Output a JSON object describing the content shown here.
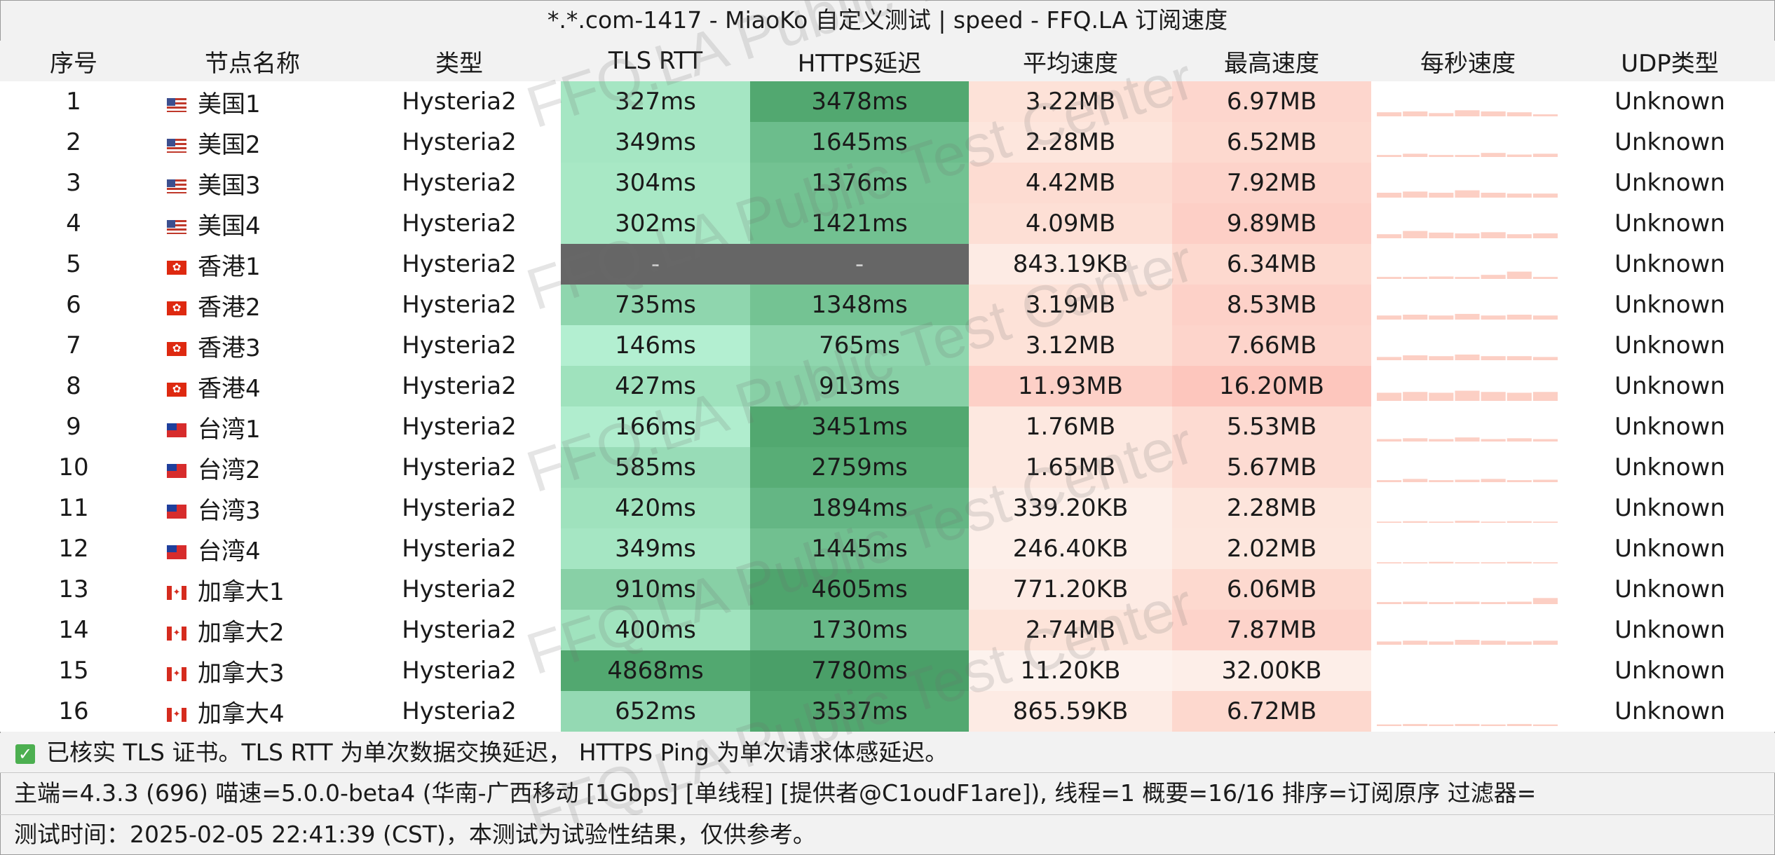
{
  "title": "*.*.com-1417 - MiaoKo 自定义测试 | speed - FFQ.LA 订阅速度",
  "columns": [
    "序号",
    "节点名称",
    "类型",
    "TLS RTT",
    "HTTPS延迟",
    "平均速度",
    "最高速度",
    "每秒速度",
    "UDP类型"
  ],
  "rows": [
    {
      "idx": "1",
      "flag": "us",
      "name": "美国1",
      "type": "Hysteria2",
      "tls": "327ms",
      "https": "3478ms",
      "avg": "3.22MB",
      "max": "6.97MB",
      "udp": "Unknown",
      "tls_color": "#a5e6c3",
      "https_color": "#52a870",
      "avg_color": "#fde2d8",
      "max_color": "#fdd6cd",
      "spark": [
        0.1,
        0.12,
        0.08,
        0.15,
        0.12,
        0.1,
        0.05
      ]
    },
    {
      "idx": "2",
      "flag": "us",
      "name": "美国2",
      "type": "Hysteria2",
      "tls": "349ms",
      "https": "1645ms",
      "avg": "2.28MB",
      "max": "6.52MB",
      "udp": "Unknown",
      "tls_color": "#a5e6c3",
      "https_color": "#6cbd8c",
      "avg_color": "#fde6dd",
      "max_color": "#fdd9cf",
      "spark": [
        0.05,
        0.08,
        0.05,
        0.05,
        0.1,
        0.06,
        0.08
      ]
    },
    {
      "idx": "3",
      "flag": "us",
      "name": "美国3",
      "type": "Hysteria2",
      "tls": "304ms",
      "https": "1376ms",
      "avg": "4.42MB",
      "max": "7.92MB",
      "udp": "Unknown",
      "tls_color": "#a8e8c5",
      "https_color": "#73c292",
      "avg_color": "#fddcd2",
      "max_color": "#fdd3ca",
      "spark": [
        0.12,
        0.15,
        0.12,
        0.18,
        0.12,
        0.1,
        0.1
      ]
    },
    {
      "idx": "4",
      "flag": "us",
      "name": "美国4",
      "type": "Hysteria2",
      "tls": "302ms",
      "https": "1421ms",
      "avg": "4.09MB",
      "max": "9.89MB",
      "udp": "Unknown",
      "tls_color": "#a8e8c5",
      "https_color": "#72c191",
      "avg_color": "#fddfd5",
      "max_color": "#fdcfc6",
      "spark": [
        0.1,
        0.18,
        0.14,
        0.12,
        0.15,
        0.1,
        0.12
      ]
    },
    {
      "idx": "5",
      "flag": "hk",
      "name": "香港1",
      "type": "Hysteria2",
      "tls": "-",
      "https": "-",
      "avg": "843.19KB",
      "max": "6.34MB",
      "udp": "Unknown",
      "tls_color": "#666666",
      "https_color": "#666666",
      "avg_color": "#fdebe4",
      "max_color": "#fdd9cf",
      "spark": [
        0.05,
        0.05,
        0.06,
        0.05,
        0.1,
        0.18,
        0.05
      ]
    },
    {
      "idx": "6",
      "flag": "hk",
      "name": "香港2",
      "type": "Hysteria2",
      "tls": "735ms",
      "https": "1348ms",
      "avg": "3.19MB",
      "max": "8.53MB",
      "udp": "Unknown",
      "tls_color": "#8fd6ae",
      "https_color": "#74c393",
      "avg_color": "#fde2d8",
      "max_color": "#fdd1c8",
      "spark": [
        0.1,
        0.12,
        0.1,
        0.14,
        0.1,
        0.12,
        0.1
      ]
    },
    {
      "idx": "7",
      "flag": "hk",
      "name": "香港3",
      "type": "Hysteria2",
      "tls": "146ms",
      "https": "765ms",
      "avg": "3.12MB",
      "max": "7.66MB",
      "udp": "Unknown",
      "tls_color": "#b3efd1",
      "https_color": "#8fd6ae",
      "avg_color": "#fde2d8",
      "max_color": "#fdd4cb",
      "spark": [
        0.08,
        0.12,
        0.1,
        0.14,
        0.1,
        0.1,
        0.08
      ]
    },
    {
      "idx": "8",
      "flag": "hk",
      "name": "香港4",
      "type": "Hysteria2",
      "tls": "427ms",
      "https": "913ms",
      "avg": "11.93MB",
      "max": "16.20MB",
      "udp": "Unknown",
      "tls_color": "#9fe2bd",
      "https_color": "#88d0a6",
      "avg_color": "#fdd0c7",
      "max_color": "#fdc6bd",
      "spark": [
        0.2,
        0.22,
        0.2,
        0.25,
        0.22,
        0.2,
        0.22
      ]
    },
    {
      "idx": "9",
      "flag": "tw",
      "name": "台湾1",
      "type": "Hysteria2",
      "tls": "166ms",
      "https": "3451ms",
      "avg": "1.76MB",
      "max": "5.53MB",
      "udp": "Unknown",
      "tls_color": "#b0edce",
      "https_color": "#52a870",
      "avg_color": "#fde8e0",
      "max_color": "#fddbd2",
      "spark": [
        0.06,
        0.08,
        0.06,
        0.1,
        0.06,
        0.08,
        0.06
      ]
    },
    {
      "idx": "10",
      "flag": "tw",
      "name": "台湾2",
      "type": "Hysteria2",
      "tls": "585ms",
      "https": "2759ms",
      "avg": "1.65MB",
      "max": "5.67MB",
      "udp": "Unknown",
      "tls_color": "#98dcb7",
      "https_color": "#58ad76",
      "avg_color": "#fde8e0",
      "max_color": "#fddbd2",
      "spark": [
        0.05,
        0.08,
        0.05,
        0.06,
        0.08,
        0.05,
        0.06
      ]
    },
    {
      "idx": "11",
      "flag": "tw",
      "name": "台湾3",
      "type": "Hysteria2",
      "tls": "420ms",
      "https": "1894ms",
      "avg": "339.20KB",
      "max": "2.28MB",
      "udp": "Unknown",
      "tls_color": "#9fe2bd",
      "https_color": "#64b684",
      "avg_color": "#fdefe9",
      "max_color": "#fde5dc",
      "spark": [
        0.03,
        0.04,
        0.03,
        0.05,
        0.03,
        0.04,
        0.03
      ]
    },
    {
      "idx": "12",
      "flag": "tw",
      "name": "台湾4",
      "type": "Hysteria2",
      "tls": "349ms",
      "https": "1445ms",
      "avg": "246.40KB",
      "max": "2.02MB",
      "udp": "Unknown",
      "tls_color": "#a5e6c3",
      "https_color": "#71c090",
      "avg_color": "#fdefe9",
      "max_color": "#fde6dd",
      "spark": [
        0.03,
        0.03,
        0.04,
        0.03,
        0.03,
        0.04,
        0.03
      ]
    },
    {
      "idx": "13",
      "flag": "ca",
      "name": "加拿大1",
      "type": "Hysteria2",
      "tls": "910ms",
      "https": "4605ms",
      "avg": "771.20KB",
      "max": "6.06MB",
      "udp": "Unknown",
      "tls_color": "#88d0a6",
      "https_color": "#4fa46d",
      "avg_color": "#fdebe4",
      "max_color": "#fdd9cf",
      "spark": [
        0.05,
        0.06,
        0.05,
        0.06,
        0.05,
        0.06,
        0.15
      ]
    },
    {
      "idx": "14",
      "flag": "ca",
      "name": "加拿大2",
      "type": "Hysteria2",
      "tls": "400ms",
      "https": "1730ms",
      "avg": "2.74MB",
      "max": "7.87MB",
      "udp": "Unknown",
      "tls_color": "#a0e3be",
      "https_color": "#68b988",
      "avg_color": "#fde4da",
      "max_color": "#fdd3ca",
      "spark": [
        0.08,
        0.1,
        0.08,
        0.12,
        0.1,
        0.08,
        0.1
      ]
    },
    {
      "idx": "15",
      "flag": "ca",
      "name": "加拿大3",
      "type": "Hysteria2",
      "tls": "4868ms",
      "https": "7780ms",
      "avg": "11.20KB",
      "max": "32.00KB",
      "udp": "Unknown",
      "tls_color": "#52a870",
      "https_color": "#4a9f68",
      "avg_color": "#fdf2ed",
      "max_color": "#fdeee8",
      "spark": [
        0,
        0,
        0,
        0,
        0,
        0,
        0
      ]
    },
    {
      "idx": "16",
      "flag": "ca",
      "name": "加拿大4",
      "type": "Hysteria2",
      "tls": "652ms",
      "https": "3537ms",
      "avg": "865.59KB",
      "max": "6.72MB",
      "udp": "Unknown",
      "tls_color": "#94d9b3",
      "https_color": "#52a870",
      "avg_color": "#fdebe4",
      "max_color": "#fdd8ce",
      "spark": [
        0.04,
        0.05,
        0.04,
        0.05,
        0.04,
        0.05,
        0.04
      ]
    }
  ],
  "legend_text": "已核实 TLS 证书。TLS RTT 为单次数据交换延迟， HTTPS Ping 为单次请求体感延迟。",
  "info_text": "主端=4.3.3 (696) 喵速=5.0.0-beta4 (华南-广西移动 [1Gbps] [单线程] [提供者@C1oudF1are]), 线程=1 概要=16/16 排序=订阅原序 过滤器=",
  "time_text": "测试时间：2025-02-05 22:41:39 (CST)，本测试为试验性结果，仅供参考。",
  "watermark": "FFQ.LA Public Test Center",
  "spark_color": "#fccfc4"
}
